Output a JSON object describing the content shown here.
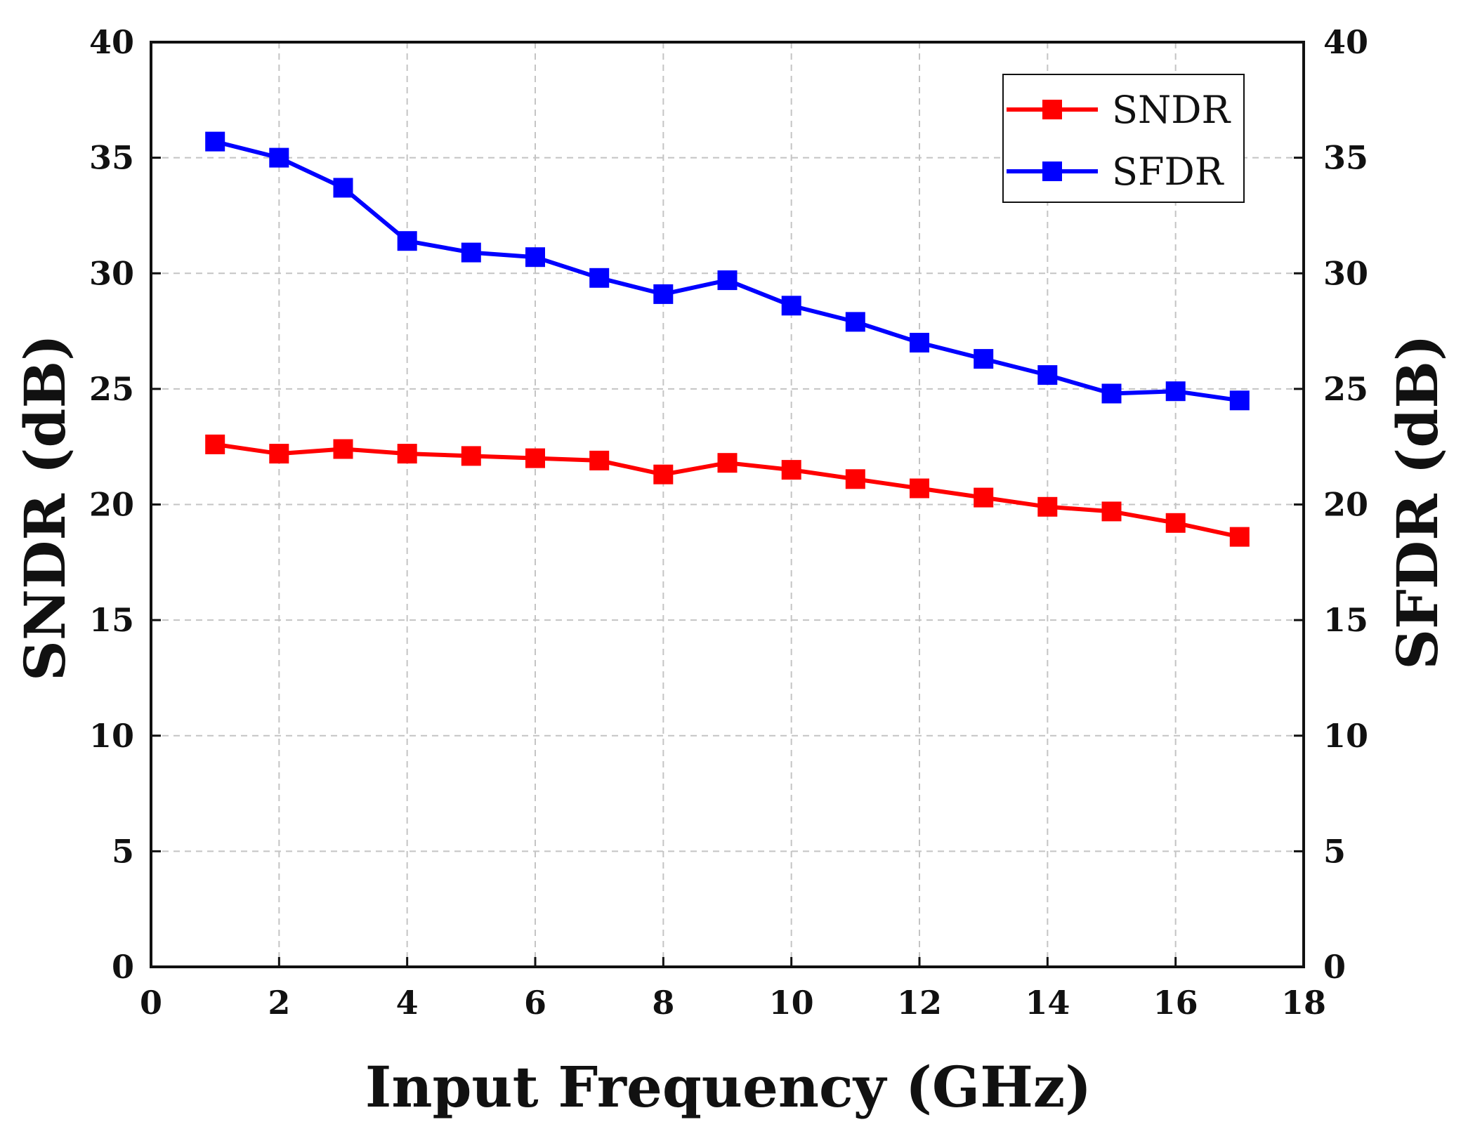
{
  "chart_data": {
    "type": "line",
    "xlabel": "Input Frequency (GHz)",
    "ylabel_left": "SNDR (dB)",
    "ylabel_right": "SFDR (dB)",
    "xlim": [
      0,
      18
    ],
    "ylim": [
      0,
      40
    ],
    "x_ticks": [
      "0",
      "2",
      "4",
      "6",
      "8",
      "10",
      "12",
      "14",
      "16",
      "18"
    ],
    "y_ticks": [
      "0",
      "5",
      "10",
      "15",
      "20",
      "25",
      "30",
      "35",
      "40"
    ],
    "grid": true,
    "legend_position": "top-right",
    "x": [
      1,
      2,
      3,
      4,
      5,
      6,
      7,
      8,
      9,
      10,
      11,
      12,
      13,
      14,
      15,
      16,
      17
    ],
    "series": [
      {
        "name": "SNDR",
        "axis": "left",
        "color": "#ff0000",
        "marker": "square",
        "values": [
          22.6,
          22.2,
          22.4,
          22.2,
          22.1,
          22.0,
          21.9,
          21.3,
          21.8,
          21.5,
          21.1,
          20.7,
          20.3,
          19.9,
          19.7,
          19.2,
          18.6
        ]
      },
      {
        "name": "SFDR",
        "axis": "right",
        "color": "#0000ff",
        "marker": "square",
        "values": [
          35.7,
          35.0,
          33.7,
          31.4,
          30.9,
          30.7,
          29.8,
          29.1,
          29.7,
          28.6,
          27.9,
          27.0,
          26.3,
          25.6,
          24.8,
          24.9,
          24.5
        ]
      }
    ]
  }
}
